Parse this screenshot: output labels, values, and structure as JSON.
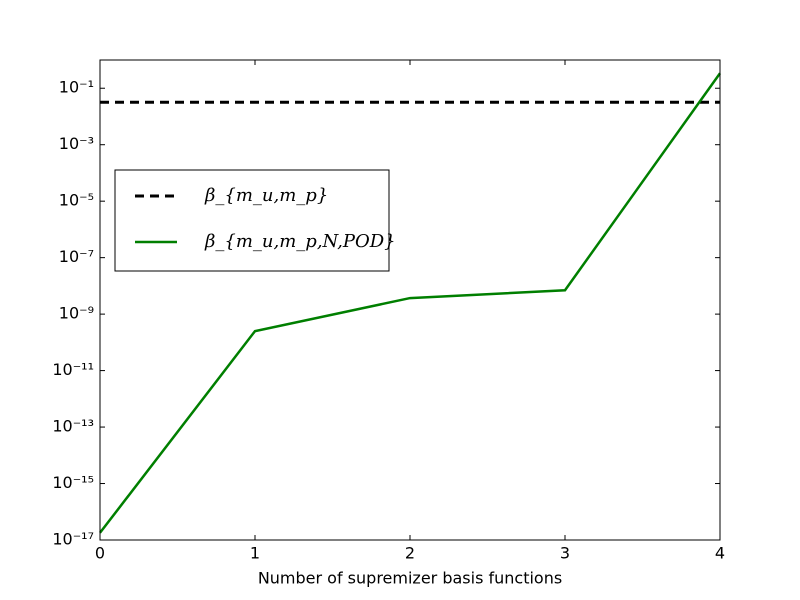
{
  "chart_data": {
    "type": "line",
    "xlabel": "Number of supremizer basis functions",
    "xlim": [
      0,
      4
    ],
    "xticks": [
      0,
      1,
      2,
      3,
      4
    ],
    "ylim": [
      1e-17,
      1
    ],
    "log_y": true,
    "yticks": [
      {
        "value": 1e-17,
        "label": "10⁻¹⁷"
      },
      {
        "value": 1e-15,
        "label": "10⁻¹⁵"
      },
      {
        "value": 1e-13,
        "label": "10⁻¹³"
      },
      {
        "value": 1e-11,
        "label": "10⁻¹¹"
      },
      {
        "value": 1e-09,
        "label": "10⁻⁹"
      },
      {
        "value": 1e-07,
        "label": "10⁻⁷"
      },
      {
        "value": 1e-05,
        "label": "10⁻⁵"
      },
      {
        "value": 0.001,
        "label": "10⁻³"
      },
      {
        "value": 0.1,
        "label": "10⁻¹"
      }
    ],
    "legend": "center-left",
    "series": [
      {
        "name": "β_{m_u,m_p}",
        "color": "#000000",
        "dash": true,
        "x": [
          0,
          4
        ],
        "values": [
          0.032,
          0.032
        ]
      },
      {
        "name": "β_{m_u,m_p,N,POD}",
        "color": "#007f00",
        "dash": false,
        "x": [
          0,
          1,
          2,
          3,
          4
        ],
        "values": [
          1.8e-17,
          2.5e-10,
          3.7e-09,
          7e-09,
          0.34
        ]
      }
    ]
  }
}
